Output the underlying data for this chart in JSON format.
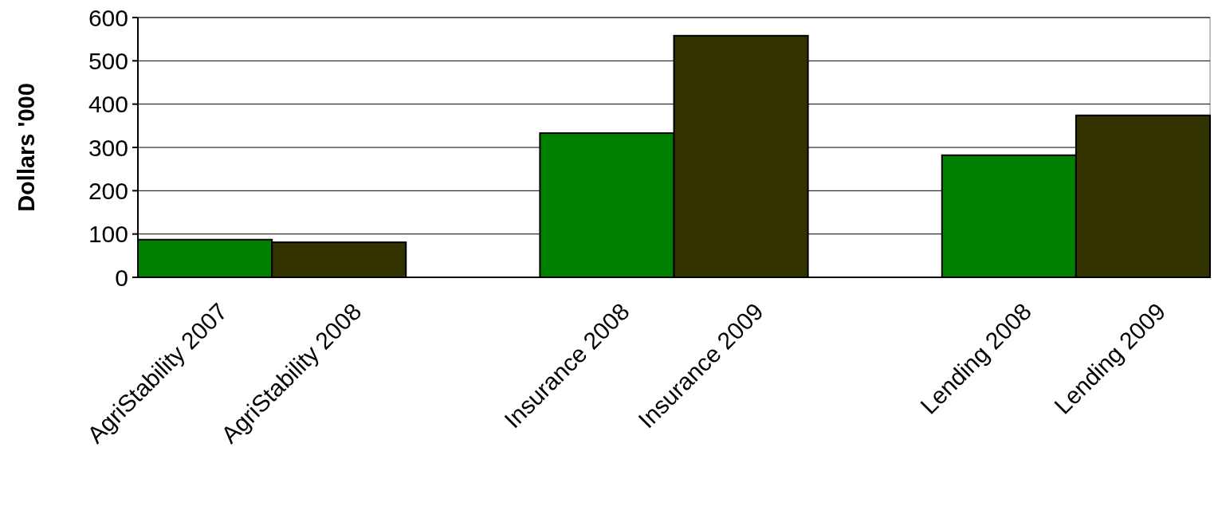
{
  "chart_data": {
    "type": "bar",
    "ylabel": "Dollars '000",
    "categories": [
      "AgriStability 2007",
      "AgriStability 2008",
      null,
      "Insurance 2008",
      "Insurance 2009",
      null,
      "Lending 2008",
      "Lending 2009"
    ],
    "values": [
      87,
      81,
      null,
      333,
      558,
      null,
      282,
      374
    ],
    "colors": [
      "#008000",
      "#333300",
      null,
      "#008000",
      "#333300",
      null,
      "#008000",
      "#333300"
    ],
    "ylim": [
      0,
      600
    ],
    "yticks": [
      0,
      100,
      200,
      300,
      400,
      500,
      600
    ],
    "grid": "y"
  }
}
